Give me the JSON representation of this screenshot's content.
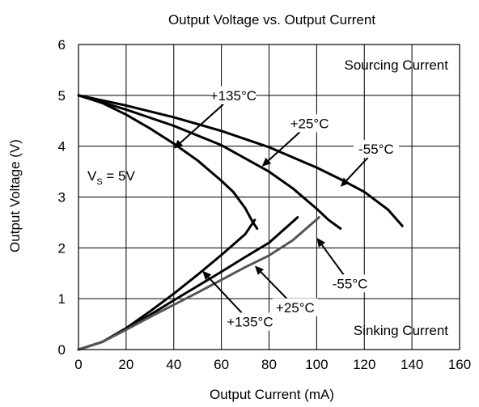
{
  "chart_data": {
    "type": "line",
    "title": "Output Voltage vs. Output Current",
    "xlabel": "Output Current (mA)",
    "ylabel": "Output Voltage (V)",
    "xlim": [
      0,
      160
    ],
    "ylim": [
      0,
      6
    ],
    "x_ticks": [
      0,
      20,
      40,
      60,
      80,
      100,
      120,
      140,
      160
    ],
    "y_ticks": [
      0,
      1,
      2,
      3,
      4,
      5,
      6
    ],
    "grid": true,
    "annotations": {
      "vs_main": "V",
      "vs_sub": "S",
      "vs_rest": " = 5V",
      "sourcing": "Sourcing Current",
      "sinking": "Sinking Current"
    },
    "series": [
      {
        "label": "+135°C",
        "region": "sourcing",
        "color": "#000000",
        "points": [
          [
            0,
            5.0
          ],
          [
            10,
            4.85
          ],
          [
            20,
            4.62
          ],
          [
            30,
            4.35
          ],
          [
            40,
            4.05
          ],
          [
            50,
            3.72
          ],
          [
            60,
            3.32
          ],
          [
            65,
            3.1
          ],
          [
            70,
            2.78
          ],
          [
            73,
            2.52
          ],
          [
            75,
            2.38
          ]
        ]
      },
      {
        "label": "+25°C",
        "region": "sourcing",
        "color": "#000000",
        "points": [
          [
            0,
            5.0
          ],
          [
            20,
            4.72
          ],
          [
            40,
            4.4
          ],
          [
            60,
            4.02
          ],
          [
            80,
            3.5
          ],
          [
            90,
            3.17
          ],
          [
            100,
            2.77
          ],
          [
            105,
            2.55
          ],
          [
            110,
            2.38
          ]
        ]
      },
      {
        "label": "-55°C",
        "region": "sourcing",
        "color": "#000000",
        "points": [
          [
            0,
            5.0
          ],
          [
            20,
            4.8
          ],
          [
            40,
            4.57
          ],
          [
            60,
            4.3
          ],
          [
            80,
            3.98
          ],
          [
            100,
            3.58
          ],
          [
            110,
            3.35
          ],
          [
            120,
            3.1
          ],
          [
            130,
            2.75
          ],
          [
            136,
            2.43
          ]
        ]
      },
      {
        "label": "+135°C",
        "region": "sinking",
        "color": "#000000",
        "points": [
          [
            0,
            0.0
          ],
          [
            10,
            0.15
          ],
          [
            20,
            0.42
          ],
          [
            30,
            0.75
          ],
          [
            40,
            1.1
          ],
          [
            50,
            1.47
          ],
          [
            60,
            1.86
          ],
          [
            70,
            2.27
          ],
          [
            74,
            2.55
          ]
        ]
      },
      {
        "label": "+25°C",
        "region": "sinking",
        "color": "#000000",
        "points": [
          [
            0,
            0.0
          ],
          [
            10,
            0.15
          ],
          [
            20,
            0.4
          ],
          [
            30,
            0.68
          ],
          [
            40,
            0.97
          ],
          [
            50,
            1.25
          ],
          [
            60,
            1.53
          ],
          [
            70,
            1.82
          ],
          [
            80,
            2.1
          ],
          [
            92,
            2.6
          ]
        ]
      },
      {
        "label": "-55°C",
        "region": "sinking",
        "color": "#555555",
        "points": [
          [
            0,
            0.0
          ],
          [
            10,
            0.15
          ],
          [
            20,
            0.39
          ],
          [
            30,
            0.64
          ],
          [
            40,
            0.88
          ],
          [
            50,
            1.12
          ],
          [
            60,
            1.37
          ],
          [
            70,
            1.62
          ],
          [
            80,
            1.85
          ],
          [
            90,
            2.15
          ],
          [
            101,
            2.6
          ]
        ]
      }
    ],
    "labels": [
      {
        "text": "+135°C",
        "at": [
          65,
          5.0
        ],
        "arrow_to": [
          40,
          3.95
        ]
      },
      {
        "text": "+25°C",
        "at": [
          97,
          4.45
        ],
        "arrow_to": [
          77,
          3.6
        ]
      },
      {
        "text": "-55°C",
        "at": [
          125,
          3.95
        ],
        "arrow_to": [
          110,
          3.2
        ]
      },
      {
        "text": "-55°C",
        "at": [
          114,
          1.3
        ],
        "arrow_to": [
          100,
          2.2
        ]
      },
      {
        "text": "+25°C",
        "at": [
          91,
          0.83
        ],
        "arrow_to": [
          74,
          1.65
        ]
      },
      {
        "text": "+135°C",
        "at": [
          72,
          0.55
        ],
        "arrow_to": [
          52,
          1.55
        ]
      }
    ]
  }
}
